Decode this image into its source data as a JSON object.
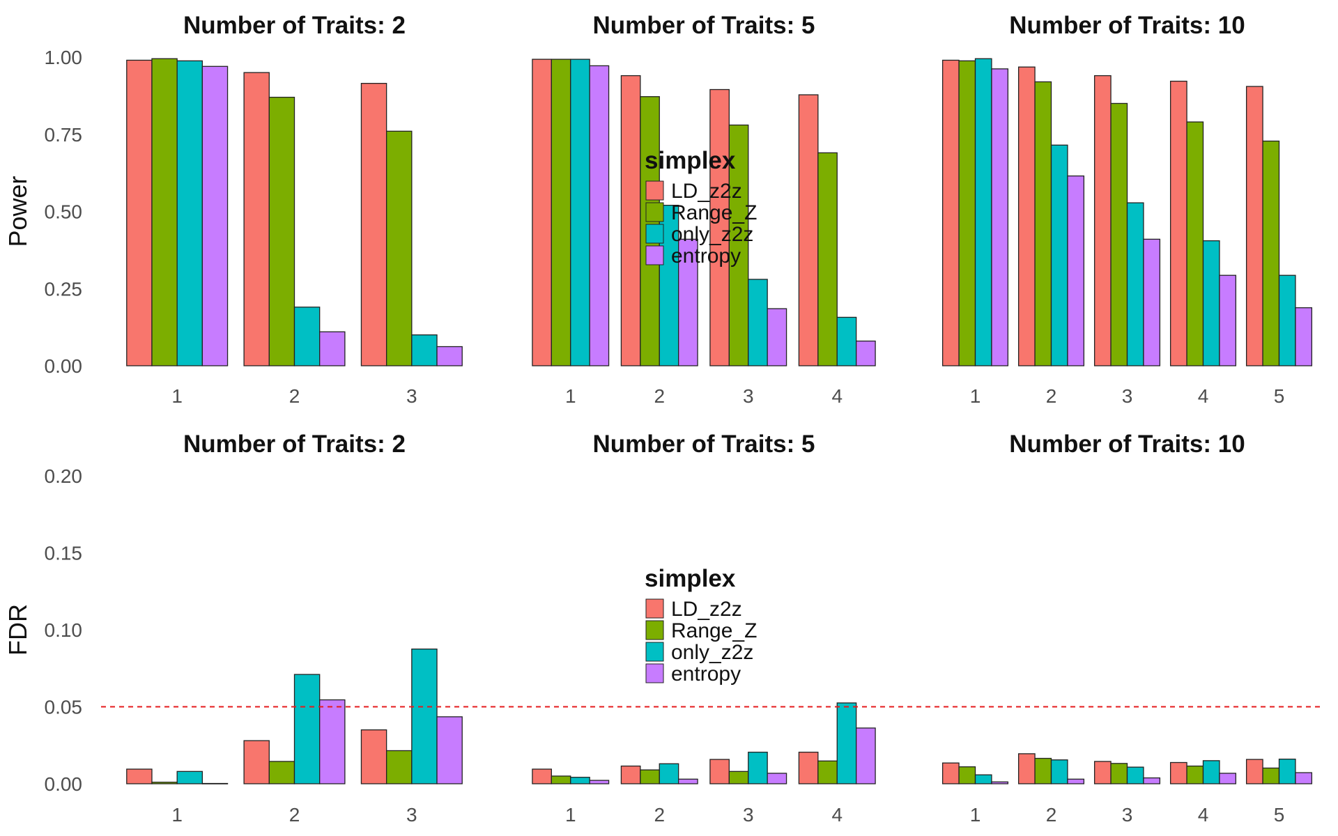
{
  "chart_data": {
    "type": "bar",
    "colors": {
      "LD_z2z": "#F8766D",
      "Range_Z": "#7CAE00",
      "only_z2z": "#00BFC4",
      "entropy": "#C77CFF",
      "reference_line": "#E41A1C"
    },
    "rows": [
      {
        "ylabel": "Power",
        "ylim": [
          0,
          1
        ],
        "yticks": [
          "0.00",
          "0.25",
          "0.50",
          "0.75",
          "1.00"
        ],
        "ytick_values": [
          0,
          0.25,
          0.5,
          0.75,
          1.0
        ],
        "reference_line": null,
        "legend": {
          "title": "simplex",
          "entries": [
            "LD_z2z",
            "Range_Z",
            "only_z2z",
            "entropy"
          ]
        },
        "panels": [
          {
            "title": "Number of Traits: 2",
            "categories": [
              "1",
              "2",
              "3"
            ],
            "series": [
              {
                "name": "LD_z2z",
                "values": [
                  0.99,
                  0.95,
                  0.915
                ]
              },
              {
                "name": "Range_Z",
                "values": [
                  0.995,
                  0.87,
                  0.76
                ]
              },
              {
                "name": "only_z2z",
                "values": [
                  0.988,
                  0.19,
                  0.1
                ]
              },
              {
                "name": "entropy",
                "values": [
                  0.97,
                  0.11,
                  0.062
                ]
              }
            ]
          },
          {
            "title": "Number of Traits: 5",
            "categories": [
              "1",
              "2",
              "3",
              "4"
            ],
            "series": [
              {
                "name": "LD_z2z",
                "values": [
                  0.993,
                  0.94,
                  0.895,
                  0.878
                ]
              },
              {
                "name": "Range_Z",
                "values": [
                  0.993,
                  0.872,
                  0.78,
                  0.69
                ]
              },
              {
                "name": "only_z2z",
                "values": [
                  0.993,
                  0.52,
                  0.28,
                  0.157
                ]
              },
              {
                "name": "entropy",
                "values": [
                  0.972,
                  0.41,
                  0.185,
                  0.08
                ]
              }
            ]
          },
          {
            "title": "Number of Traits: 10",
            "categories": [
              "1",
              "2",
              "3",
              "4",
              "5"
            ],
            "series": [
              {
                "name": "LD_z2z",
                "values": [
                  0.99,
                  0.968,
                  0.94,
                  0.922,
                  0.905
                ]
              },
              {
                "name": "Range_Z",
                "values": [
                  0.988,
                  0.92,
                  0.85,
                  0.79,
                  0.728
                ]
              },
              {
                "name": "only_z2z",
                "values": [
                  0.995,
                  0.715,
                  0.528,
                  0.405,
                  0.293
                ]
              },
              {
                "name": "entropy",
                "values": [
                  0.962,
                  0.615,
                  0.41,
                  0.293,
                  0.188
                ]
              }
            ]
          }
        ]
      },
      {
        "ylabel": "FDR",
        "ylim": [
          0,
          0.2
        ],
        "yticks": [
          "0.00",
          "0.05",
          "0.10",
          "0.15",
          "0.20"
        ],
        "ytick_values": [
          0,
          0.05,
          0.1,
          0.15,
          0.2
        ],
        "reference_line": 0.05,
        "legend": {
          "title": "simplex",
          "entries": [
            "LD_z2z",
            "Range_Z",
            "only_z2z",
            "entropy"
          ]
        },
        "panels": [
          {
            "title": "Number of Traits: 2",
            "categories": [
              "1",
              "2",
              "3"
            ],
            "series": [
              {
                "name": "LD_z2z",
                "values": [
                  0.0095,
                  0.028,
                  0.035
                ]
              },
              {
                "name": "Range_Z",
                "values": [
                  0.001,
                  0.0145,
                  0.0215
                ]
              },
              {
                "name": "only_z2z",
                "values": [
                  0.008,
                  0.071,
                  0.0875
                ]
              },
              {
                "name": "entropy",
                "values": [
                  0.0002,
                  0.0545,
                  0.0435
                ]
              }
            ]
          },
          {
            "title": "Number of Traits: 5",
            "categories": [
              "1",
              "2",
              "3",
              "4"
            ],
            "series": [
              {
                "name": "LD_z2z",
                "values": [
                  0.0095,
                  0.0115,
                  0.0158,
                  0.0205
                ]
              },
              {
                "name": "Range_Z",
                "values": [
                  0.005,
                  0.009,
                  0.008,
                  0.0148
                ]
              },
              {
                "name": "only_z2z",
                "values": [
                  0.0042,
                  0.013,
                  0.0205,
                  0.0525
                ]
              },
              {
                "name": "entropy",
                "values": [
                  0.0022,
                  0.003,
                  0.0068,
                  0.0362
                ]
              }
            ]
          },
          {
            "title": "Number of Traits: 10",
            "categories": [
              "1",
              "2",
              "3",
              "4",
              "5"
            ],
            "series": [
              {
                "name": "LD_z2z",
                "values": [
                  0.0135,
                  0.0195,
                  0.0145,
                  0.0138,
                  0.0158
                ]
              },
              {
                "name": "Range_Z",
                "values": [
                  0.011,
                  0.0165,
                  0.0132,
                  0.0115,
                  0.0102
                ]
              },
              {
                "name": "only_z2z",
                "values": [
                  0.0058,
                  0.0155,
                  0.0108,
                  0.015,
                  0.016
                ]
              },
              {
                "name": "entropy",
                "values": [
                  0.0012,
                  0.003,
                  0.0038,
                  0.0068,
                  0.0072
                ]
              }
            ]
          }
        ]
      }
    ]
  }
}
